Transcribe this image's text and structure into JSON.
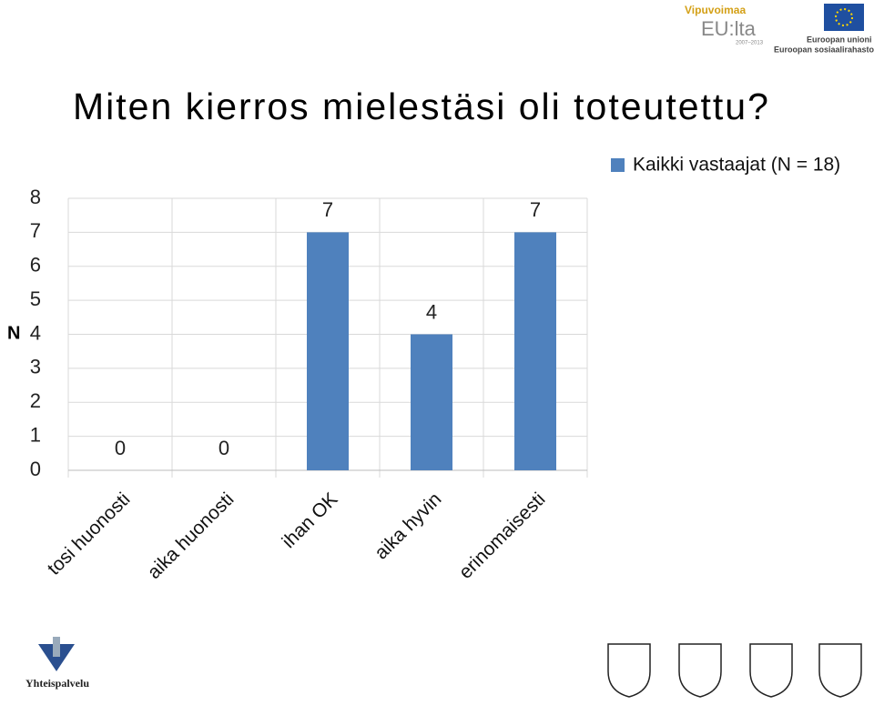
{
  "chart_data": {
    "type": "bar",
    "title": "Miten kierros mielestäsi oli toteutettu?",
    "categories": [
      "tosi huonosti",
      "aika huonosti",
      "ihan OK",
      "aika hyvin",
      "erinomaisesti"
    ],
    "series": [
      {
        "name": "Kaikki vastaajat (N = 18)",
        "color": "#4f81bd",
        "values": [
          0,
          0,
          7,
          4,
          7
        ]
      }
    ],
    "ylabel": "N",
    "ylim": [
      0,
      8
    ],
    "yticks": [
      0,
      1,
      2,
      3,
      4,
      5,
      6,
      7,
      8
    ],
    "grid": true,
    "legend": "top-right"
  },
  "logos": {
    "vipuvoimaa": "Vipuvoimaa",
    "eulta": "EU:lta",
    "years": "2007–2013",
    "eu1": "Euroopan unioni",
    "eu2": "Euroopan sosiaalirahasto",
    "yhteispalvelu": "Yhteispalvelu"
  }
}
